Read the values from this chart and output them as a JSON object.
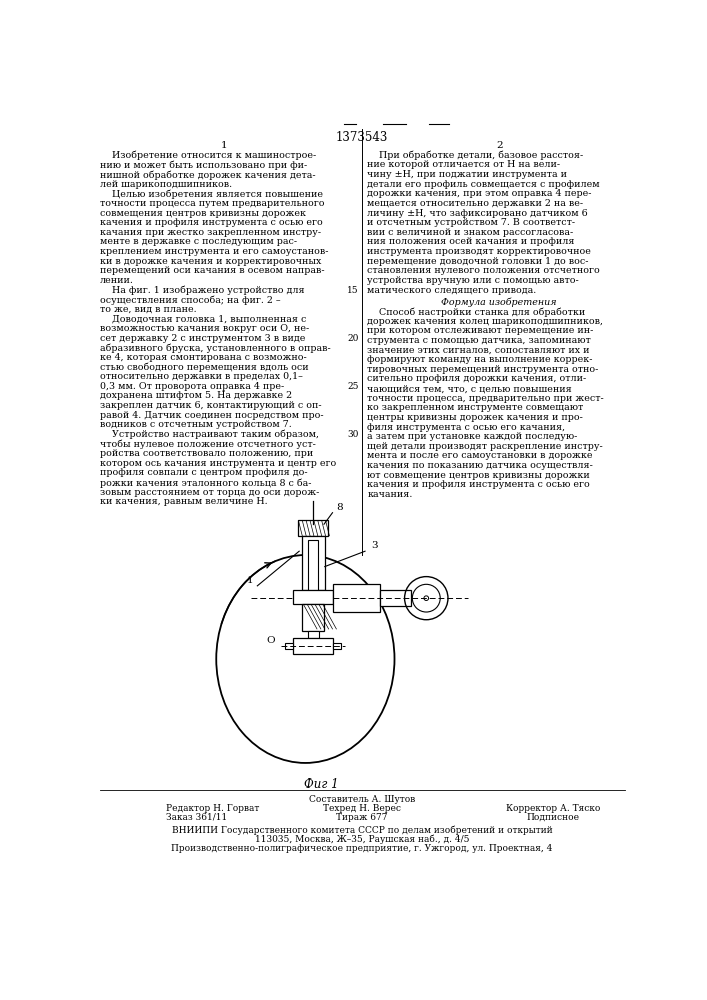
{
  "title": "1373543",
  "col1_header": "1",
  "col2_header": "2",
  "col1_text": [
    "    Изобретение относится к машинострое-",
    "нию и может быть использовано при фи-",
    "нишной обработке дорожек качения дета-",
    "лей шарикоподшипников.",
    "    Целью изобретения является повышение",
    "точности процесса путем предварительного",
    "совмещения центров кривизны дорожек",
    "качения и профиля инструмента с осью его",
    "качания при жестко закрепленном инстру-",
    "менте в державке с последующим рас-",
    "креплением инструмента и его самоустанов-",
    "ки в дорожке качения и корректировочных",
    "перемещений оси качания в осевом направ-",
    "лении.",
    "    На фиг. 1 изображено устройство для",
    "осуществления способа; на фиг. 2 –",
    "то же, вид в плане.",
    "    Доводочная головка 1, выполненная с",
    "возможностью качания вокруг оси О, не-",
    "сет державку 2 с инструментом 3 в виде",
    "абразивного бруска, установленного в оправ-",
    "ке 4, которая смонтирована с возможно-",
    "стью свободного перемещения вдоль оси",
    "относительно державки в пределах 0,1–",
    "0,3 мм. От проворота оправка 4 пре-",
    "дохранена штифтом 5. На державке 2",
    "закреплен датчик 6, контактирующий с оп-",
    "равой 4. Датчик соединен посредством про-",
    "водников с отсчетным устройством 7.",
    "    Устройство настраивают таким образом,",
    "чтобы нулевое положение отсчетного уст-",
    "ройства соответствовало положению, при",
    "котором ось качания инструмента и центр его",
    "профиля совпали с центром профиля до-",
    "рожки качения эталонного кольца 8 с ба-",
    "зовым расстоянием от торца до оси дорож-",
    "ки качения, равным величине Н."
  ],
  "col2_text_part1": [
    "    При обработке детали, базовое расстоя-",
    "ние которой отличается от Н на вели-",
    "чину ±Н, при поджатии инструмента и",
    "детали его профиль совмещается с профилем",
    "дорожки качения, при этом оправка 4 пере-",
    "мещается относительно державки 2 на ве-",
    "личину ±Н, что зафиксировано датчиком 6",
    "и отсчетным устройством 7. В соответст-",
    "вии с величиной и знаком рассогласова-",
    "ния положения осей качания и профиля",
    "инструмента производят корректировочное",
    "перемещение доводочной головки 1 до вос-",
    "становления нулевого положения отсчетного",
    "устройства вручную или с помощью авто-",
    "матического следящего привода."
  ],
  "formula_header": "Формула изобретения",
  "col2_text_part2": [
    "    Способ настройки станка для обработки",
    "дорожек качения колец шарикоподшипников,",
    "при котором отслеживают перемещение ин-",
    "струмента с помощью датчика, запоминают",
    "значение этих сигналов, сопоставляют их и",
    "формируют команду на выполнение коррек-",
    "тировочных перемещений инструмента отно-",
    "сительно профиля дорожки качения, отли-",
    "чающийся тем, что, с целью повышения",
    "точности процесса, предварительно при жест-",
    "ко закрепленном инструменте совмещают",
    "центры кривизны дорожек качения и про-",
    "филя инструмента с осью его качания,",
    "а затем при установке каждой последую-",
    "щей детали производят раскрепление инстру-",
    "мента и после его самоустановки в дорожке",
    "качения по показанию датчика осуществля-",
    "ют совмещение центров кривизны дорожки",
    "качения и профиля инструмента с осью его",
    "качания."
  ],
  "line_number_15": "15",
  "line_number_20": "20",
  "line_number_25": "25",
  "line_number_30": "30",
  "fig_caption": "Фиг 1",
  "footer_col1_line1": "Редактор Н. Горват",
  "footer_col1_line2": "Заказ 361/11",
  "footer_col2_line0": "Составитель А. Шутов",
  "footer_col2_line1": "Техред Н. Верес",
  "footer_col2_line2": "Тираж 677",
  "footer_col3_line1": "Корректор А. Тяско",
  "footer_col3_line2": "Подписное",
  "footer_line3": "ВНИИПИ Государственного комитета СССР по делам изобретений и открытий",
  "footer_line4": "113035, Москва, Ж–35, Раушская наб., д. 4/5",
  "footer_line5": "Производственно-полиграфическое предприятие, г. Ужгород, ул. Проектная, 4",
  "bg_color": "#ffffff",
  "text_color": "#000000"
}
